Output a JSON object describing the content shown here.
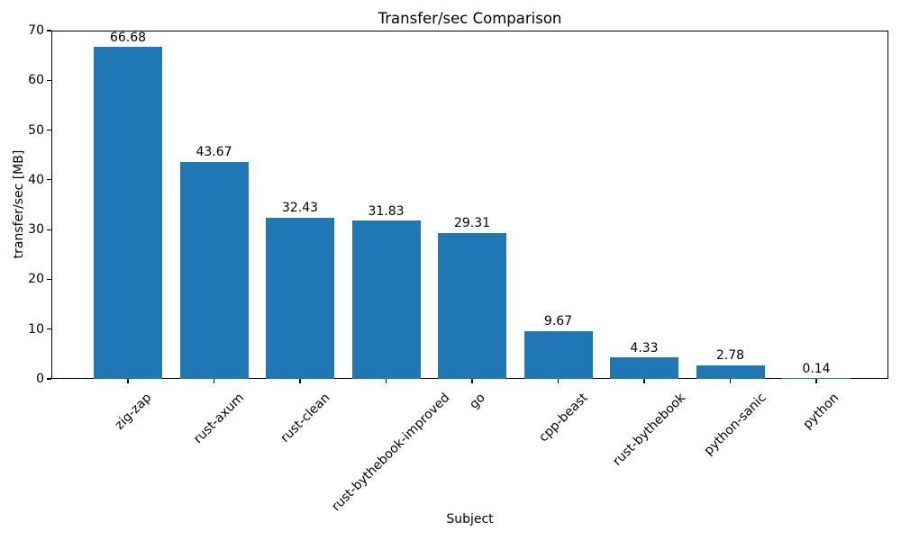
{
  "chart_data": {
    "type": "bar",
    "title": "Transfer/sec Comparison",
    "xlabel": "Subject",
    "ylabel": "transfer/sec [MB]",
    "categories": [
      "zig-zap",
      "rust-axum",
      "rust-clean",
      "rust-bythebook-improved",
      "go",
      "cpp-beast",
      "rust-bythebook",
      "python-sanic",
      "python"
    ],
    "values": [
      66.68,
      43.67,
      32.43,
      31.83,
      29.31,
      9.67,
      4.33,
      2.78,
      0.14
    ],
    "value_labels": [
      "66.68",
      "43.67",
      "32.43",
      "31.83",
      "29.31",
      "9.67",
      "4.33",
      "2.78",
      "0.14"
    ],
    "ylim": [
      0,
      70
    ],
    "yticks": [
      0,
      10,
      20,
      30,
      40,
      50,
      60,
      70
    ],
    "bar_color": "#1f77b4",
    "text_color": "#000000",
    "background_color": "#ffffff",
    "grid": false,
    "legend_position": "none"
  }
}
